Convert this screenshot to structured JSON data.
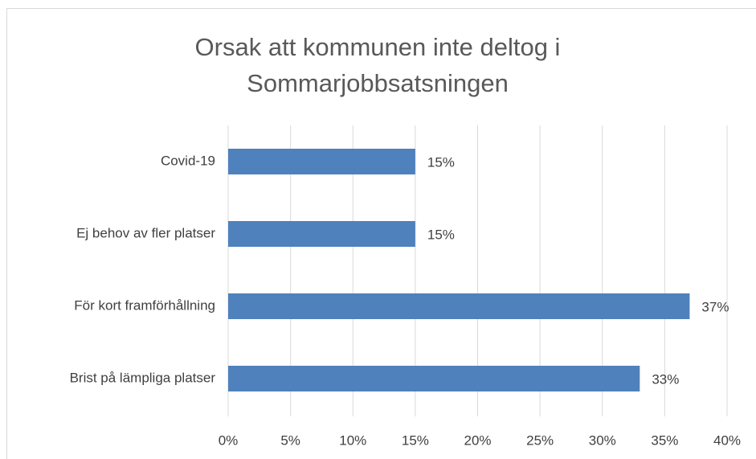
{
  "chart_data": {
    "type": "hbar",
    "title": "Orsak att kommunen inte deltog i Sommarjobbsatsningen",
    "categories": [
      "Covid-19",
      "Ej behov av fler platser",
      "För kort framförhållning",
      "Brist på lämpliga platser"
    ],
    "values": [
      15,
      15,
      37,
      33
    ],
    "value_labels": [
      "15%",
      "15%",
      "37%",
      "33%"
    ],
    "color": "#4f81bd",
    "xlim": [
      0,
      40
    ],
    "xticks": [
      {
        "value": 0,
        "label": "0%"
      },
      {
        "value": 5,
        "label": "5%"
      },
      {
        "value": 10,
        "label": "10%"
      },
      {
        "value": 15,
        "label": "15%"
      },
      {
        "value": 20,
        "label": "20%"
      },
      {
        "value": 25,
        "label": "25%"
      },
      {
        "value": 30,
        "label": "30%"
      },
      {
        "value": 35,
        "label": "35%"
      },
      {
        "value": 40,
        "label": "40%"
      }
    ],
    "grid": true
  }
}
